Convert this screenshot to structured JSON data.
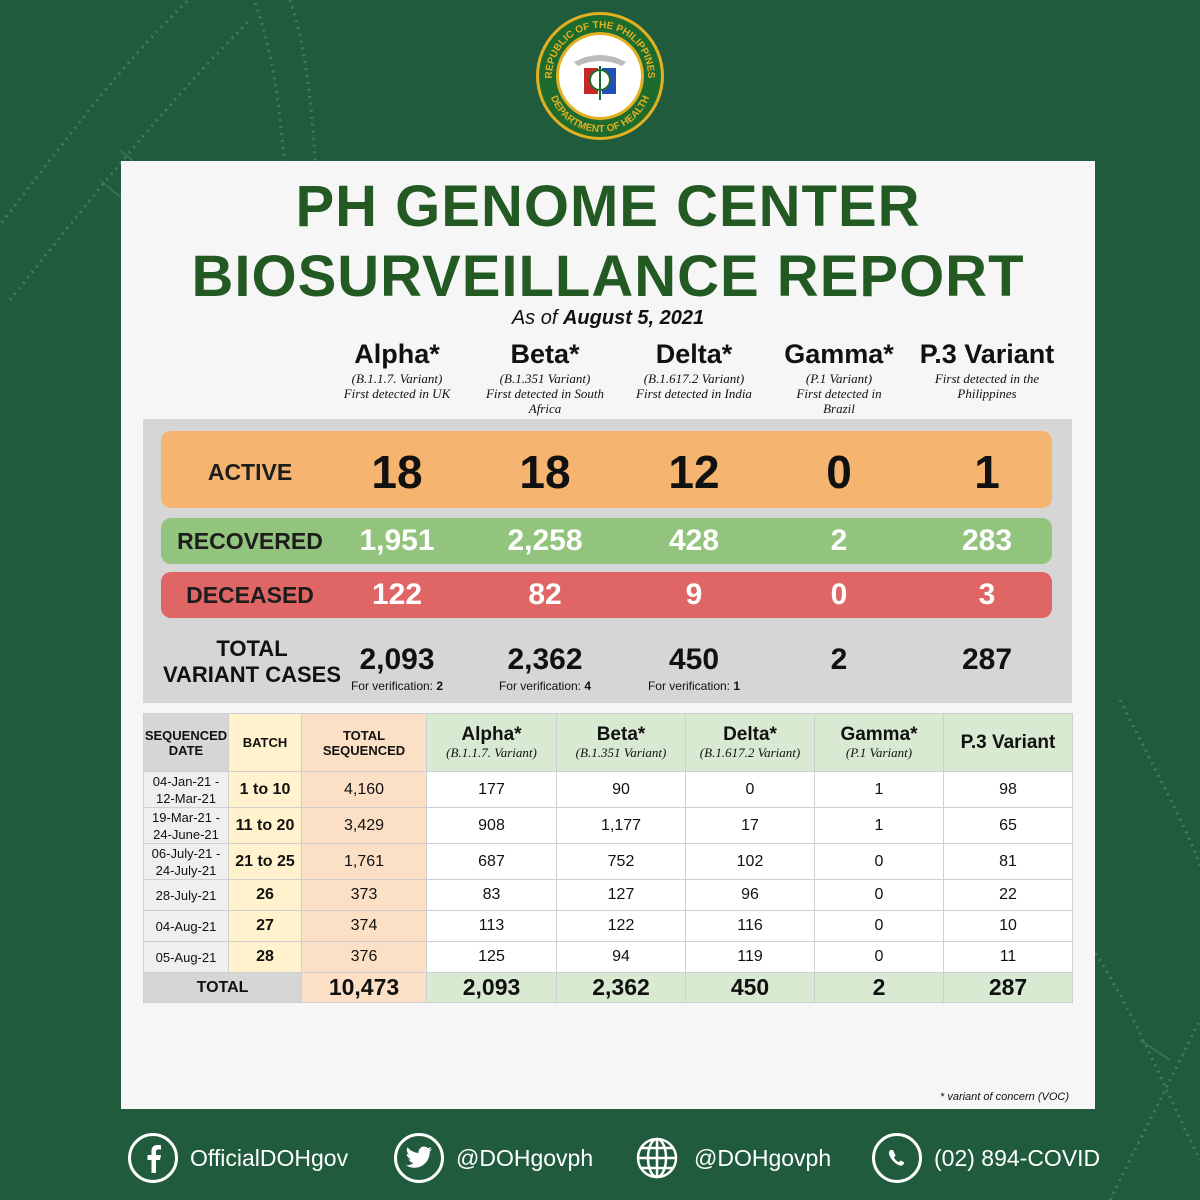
{
  "seal": {
    "top_text": "REPUBLIC OF THE PHILIPPINES",
    "bottom_text": "DEPARTMENT OF HEALTH"
  },
  "title_line1": "PH GENOME CENTER",
  "title_line2": "BIOSURVEILLANCE REPORT",
  "as_of_prefix": "As of",
  "as_of_date": "August 5, 2021",
  "variants": [
    {
      "name": "Alpha*",
      "sub1": "(B.1.1.7. Variant)",
      "sub2": "First detected in UK",
      "sub3": ""
    },
    {
      "name": "Beta*",
      "sub1": "(B.1.351 Variant)",
      "sub2": "First detected in South",
      "sub3": "Africa"
    },
    {
      "name": "Delta*",
      "sub1": "(B.1.617.2 Variant)",
      "sub2": "First detected in India",
      "sub3": ""
    },
    {
      "name": "Gamma*",
      "sub1": "(P.1 Variant)",
      "sub2": "First detected in",
      "sub3": "Brazil"
    },
    {
      "name": "P.3 Variant",
      "sub1": "First detected in the",
      "sub2": "Philippines",
      "sub3": ""
    }
  ],
  "summary": {
    "active_label": "ACTIVE",
    "active": [
      "18",
      "18",
      "12",
      "0",
      "1"
    ],
    "recovered_label": "RECOVERED",
    "recovered": [
      "1,951",
      "2,258",
      "428",
      "2",
      "283"
    ],
    "deceased_label": "DECEASED",
    "deceased": [
      "122",
      "82",
      "9",
      "0",
      "3"
    ],
    "total_label_1": "TOTAL",
    "total_label_2": "VARIANT CASES",
    "total": [
      "2,093",
      "2,362",
      "450",
      "2",
      "287"
    ],
    "verification_label": "For verification:",
    "verification": [
      "2",
      "4",
      "1"
    ]
  },
  "table": {
    "headers": {
      "date_1": "SEQUENCED",
      "date_2": "DATE",
      "batch": "BATCH",
      "total_1": "TOTAL",
      "total_2": "SEQUENCED",
      "alpha": "Alpha*",
      "alpha_sub": "(B.1.1.7. Variant)",
      "beta": "Beta*",
      "beta_sub": "(B.1.351 Variant)",
      "delta": "Delta*",
      "delta_sub": "(B.1.617.2 Variant)",
      "gamma": "Gamma*",
      "gamma_sub": "(P.1 Variant)",
      "p3": "P.3 Variant"
    },
    "rows": [
      {
        "date1": "04-Jan-21 -",
        "date2": "12-Mar-21",
        "batch": "1 to 10",
        "total": "4,160",
        "alpha": "177",
        "beta": "90",
        "delta": "0",
        "gamma": "1",
        "p3": "98"
      },
      {
        "date1": "19-Mar-21 -",
        "date2": "24-June-21",
        "batch": "11 to 20",
        "total": "3,429",
        "alpha": "908",
        "beta": "1,177",
        "delta": "17",
        "gamma": "1",
        "p3": "65"
      },
      {
        "date1": "06-July-21 -",
        "date2": "24-July-21",
        "batch": "21 to 25",
        "total": "1,761",
        "alpha": "687",
        "beta": "752",
        "delta": "102",
        "gamma": "0",
        "p3": "81"
      },
      {
        "date1": "28-July-21",
        "date2": "",
        "batch": "26",
        "total": "373",
        "alpha": "83",
        "beta": "127",
        "delta": "96",
        "gamma": "0",
        "p3": "22"
      },
      {
        "date1": "04-Aug-21",
        "date2": "",
        "batch": "27",
        "total": "374",
        "alpha": "113",
        "beta": "122",
        "delta": "116",
        "gamma": "0",
        "p3": "10"
      },
      {
        "date1": "05-Aug-21",
        "date2": "",
        "batch": "28",
        "total": "376",
        "alpha": "125",
        "beta": "94",
        "delta": "119",
        "gamma": "0",
        "p3": "11"
      }
    ],
    "total_row": {
      "label": "TOTAL",
      "total": "10,473",
      "alpha": "2,093",
      "beta": "2,362",
      "delta": "450",
      "gamma": "2",
      "p3": "287"
    }
  },
  "footnote": "* variant of concern (VOC)",
  "social": [
    {
      "icon": "facebook-icon",
      "text": "OfficialDOHgov"
    },
    {
      "icon": "twitter-icon",
      "text": "@DOHgovph"
    },
    {
      "icon": "globe-icon",
      "text": "@DOHgovph"
    },
    {
      "icon": "whatsapp-icon",
      "text": "(02) 894-COVID"
    }
  ],
  "colors": {
    "background": "#1f5b3c",
    "title": "#235a23",
    "active": "#f5b46f",
    "recovered": "#93c47d",
    "deceased": "#e06666"
  }
}
